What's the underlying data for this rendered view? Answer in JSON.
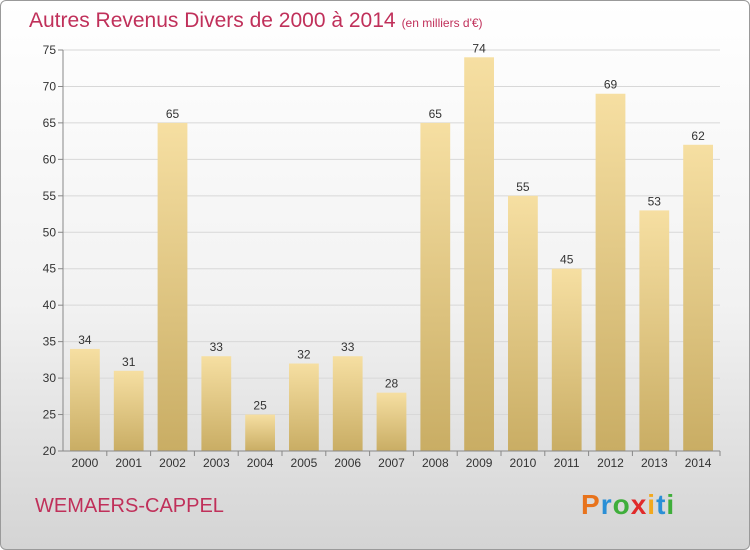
{
  "header": {
    "title": "Autres Revenus Divers de 2000 à 2014",
    "unit": "(en milliers d'€)"
  },
  "footer": {
    "commune": "WEMAERS-CAPPEL",
    "logo_letters": [
      "P",
      "r",
      "o",
      "x",
      "i",
      "t",
      "i"
    ],
    "logo_colors": [
      "#e8731c",
      "#2a8fd6",
      "#3fae3b",
      "#e02a2a",
      "#f2a81d",
      "#2a8fd6",
      "#3fae3b"
    ]
  },
  "colors": {
    "bar_top": "#f6dfa2",
    "bar_bottom": "#c9ad64",
    "grid": "#d8d8d8",
    "axis": "#888888",
    "text": "#333333",
    "title": "#c0305a"
  },
  "chart_data": {
    "type": "bar",
    "categories": [
      "2000",
      "2001",
      "2002",
      "2003",
      "2004",
      "2005",
      "2006",
      "2007",
      "2008",
      "2009",
      "2010",
      "2011",
      "2012",
      "2013",
      "2014"
    ],
    "values": [
      34,
      31,
      65,
      33,
      25,
      32,
      33,
      28,
      65,
      74,
      55,
      45,
      69,
      53,
      62
    ],
    "title": "Autres Revenus Divers de 2000 à 2014",
    "subtitle": "(en milliers d'€)",
    "xlabel": "",
    "ylabel": "",
    "ylim": [
      20,
      75
    ],
    "yticks": [
      20,
      25,
      30,
      35,
      40,
      45,
      50,
      55,
      60,
      65,
      70,
      75
    ],
    "grid": true,
    "legend": "none"
  }
}
